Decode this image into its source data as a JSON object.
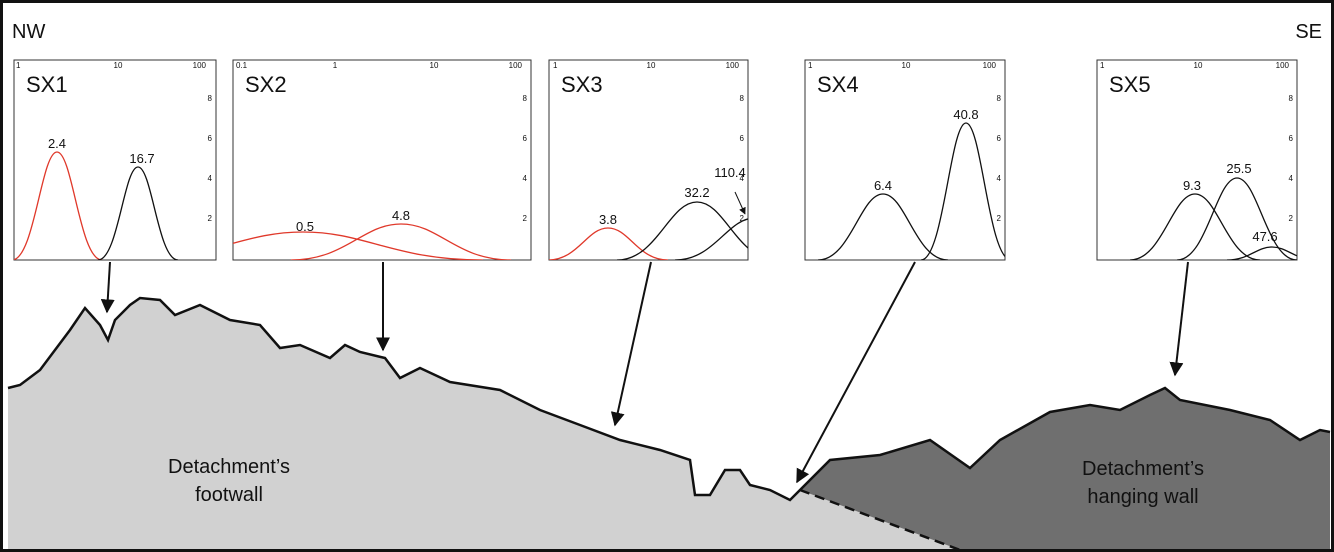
{
  "header": {
    "left": "NW",
    "right": "SE"
  },
  "panels": [
    {
      "title": "SX1",
      "top_ticks": [
        "1",
        "10",
        "100"
      ],
      "right_ticks": [
        "8",
        "6",
        "4",
        "2"
      ],
      "peaks": [
        "2.4",
        "16.7"
      ]
    },
    {
      "title": "SX2",
      "top_ticks": [
        "0.1",
        "1",
        "10",
        "100"
      ],
      "right_ticks": [
        "8",
        "6",
        "4",
        "2"
      ],
      "peaks": [
        "0.5",
        "4.8"
      ]
    },
    {
      "title": "SX3",
      "top_ticks": [
        "1",
        "10",
        "100"
      ],
      "right_ticks": [
        "8",
        "6",
        "4",
        "2"
      ],
      "peaks": [
        "3.8",
        "32.2",
        "110.4"
      ]
    },
    {
      "title": "SX4",
      "top_ticks": [
        "1",
        "10",
        "100"
      ],
      "right_ticks": [
        "8",
        "6",
        "4",
        "2"
      ],
      "peaks": [
        "6.4",
        "40.8"
      ]
    },
    {
      "title": "SX5",
      "top_ticks": [
        "1",
        "10",
        "100"
      ],
      "right_ticks": [
        "8",
        "6",
        "4",
        "2"
      ],
      "peaks": [
        "9.3",
        "25.5",
        "47.6"
      ]
    }
  ],
  "labels": {
    "footwall": [
      "Detachment’s",
      "footwall"
    ],
    "hanging_wall": [
      "Detachment’s",
      "hanging wall"
    ]
  }
}
